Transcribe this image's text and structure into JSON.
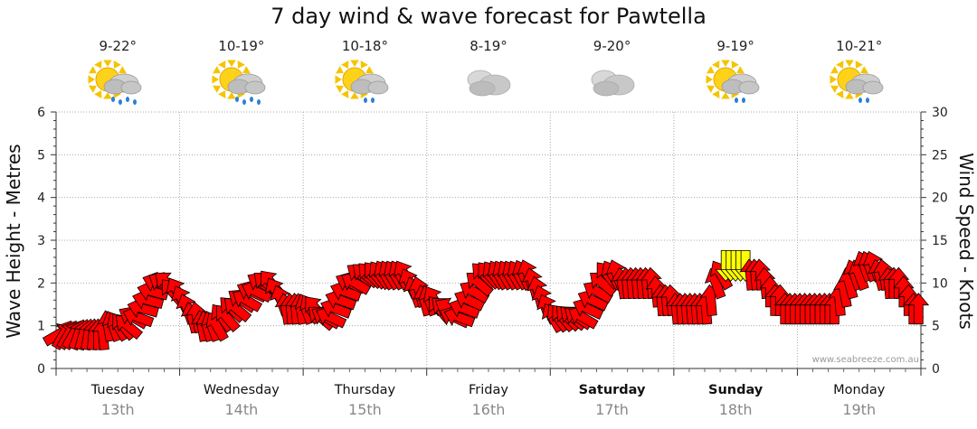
{
  "title": "7 day wind & wave forecast for Pawtella",
  "credit": "www.seabreeze.com.au",
  "days": [
    {
      "day": "Tuesday",
      "date": "13th",
      "temp": "9-22°",
      "icon": "sun-cloud-rain-icon",
      "bold": false
    },
    {
      "day": "Wednesday",
      "date": "14th",
      "temp": "10-19°",
      "icon": "sun-cloud-rain-icon",
      "bold": false
    },
    {
      "day": "Thursday",
      "date": "15th",
      "temp": "10-18°",
      "icon": "sun-cloud-showers-icon",
      "bold": false
    },
    {
      "day": "Friday",
      "date": "16th",
      "temp": "8-19°",
      "icon": "cloud-icon",
      "bold": false
    },
    {
      "day": "Saturday",
      "date": "17th",
      "temp": "9-20°",
      "icon": "cloud-icon",
      "bold": true
    },
    {
      "day": "Sunday",
      "date": "18th",
      "temp": "9-19°",
      "icon": "sun-cloud-showers-icon",
      "bold": true
    },
    {
      "day": "Monday",
      "date": "19th",
      "temp": "10-21°",
      "icon": "sun-cloud-showers-icon",
      "bold": false
    }
  ],
  "chart_data": {
    "type": "line",
    "title": "7 day wind & wave forecast for Pawtella",
    "ylabel_left": "Wave Height - Metres",
    "ylabel_right": "Wind Speed - Knots",
    "ylim_left": [
      0,
      6
    ],
    "yticks_left": [
      0,
      1,
      2,
      3,
      4,
      5,
      6
    ],
    "ylim_right": [
      0,
      30
    ],
    "yticks_right": [
      0,
      5,
      10,
      15,
      20,
      25,
      30
    ],
    "grid": true,
    "colors": {
      "arrow": "#ff0000",
      "arrow_light": "#ffff00",
      "grid": "#999999"
    },
    "wind_knots": [
      4,
      4,
      4,
      4,
      4,
      4,
      4,
      4,
      4,
      4,
      5,
      5,
      5,
      5,
      5,
      6,
      6,
      7,
      8,
      9,
      10,
      10,
      10,
      9,
      9,
      8,
      7,
      6,
      6,
      5,
      5,
      5,
      5,
      6,
      6,
      7,
      7,
      8,
      8,
      9,
      9,
      10,
      10,
      10,
      9,
      8,
      7,
      7,
      7,
      7,
      7,
      7,
      7,
      6,
      6,
      6,
      7,
      8,
      9,
      10,
      10,
      11,
      11,
      11,
      11,
      11,
      11,
      11,
      11,
      11,
      11,
      10,
      9,
      9,
      8,
      8,
      8,
      7,
      7,
      7,
      6,
      6,
      7,
      8,
      9,
      10,
      11,
      11,
      11,
      11,
      11,
      11,
      11,
      11,
      11,
      11,
      10,
      9,
      8,
      7,
      6,
      6,
      6,
      6,
      6,
      6,
      6,
      7,
      8,
      9,
      10,
      11,
      11,
      11,
      10,
      10,
      10,
      10,
      10,
      10,
      10,
      9,
      8,
      8,
      8,
      7,
      7,
      7,
      7,
      7,
      7,
      7,
      8,
      10,
      11,
      12,
      12,
      12,
      12,
      12,
      11,
      11,
      11,
      10,
      9,
      8,
      8,
      7,
      7,
      7,
      7,
      7,
      7,
      7,
      7,
      7,
      7,
      7,
      8,
      9,
      10,
      11,
      11,
      12,
      12,
      12,
      11,
      11,
      10,
      10,
      10,
      9,
      8,
      7,
      7
    ],
    "wind_highlight": [
      false,
      false,
      false,
      false,
      false,
      false,
      false,
      false,
      false,
      false,
      false,
      false,
      false,
      false,
      false,
      false,
      false,
      false,
      false,
      false,
      false,
      false,
      false,
      false,
      false,
      false,
      false,
      false,
      false,
      false,
      false,
      false,
      false,
      false,
      false,
      false,
      false,
      false,
      false,
      false,
      false,
      false,
      false,
      false,
      false,
      false,
      false,
      false,
      false,
      false,
      false,
      false,
      false,
      false,
      false,
      false,
      false,
      false,
      false,
      false,
      false,
      false,
      false,
      false,
      false,
      false,
      false,
      false,
      false,
      false,
      false,
      false,
      false,
      false,
      false,
      false,
      false,
      false,
      false,
      false,
      false,
      false,
      false,
      false,
      false,
      false,
      false,
      false,
      false,
      false,
      false,
      false,
      false,
      false,
      false,
      false,
      false,
      false,
      false,
      false,
      false,
      false,
      false,
      false,
      false,
      false,
      false,
      false,
      false,
      false,
      false,
      false,
      false,
      false,
      false,
      false,
      false,
      false,
      false,
      false,
      false,
      false,
      false,
      false,
      false,
      false,
      false,
      false,
      false,
      false,
      false,
      false,
      false,
      false,
      false,
      true,
      true,
      true,
      true,
      true,
      false,
      false,
      false,
      false,
      false,
      false,
      false,
      false,
      false,
      false,
      false,
      false,
      false,
      false,
      false,
      false,
      false,
      false,
      false,
      false,
      false,
      false,
      false,
      false,
      false,
      false,
      false,
      false,
      false,
      false,
      false,
      false,
      false,
      false,
      false
    ],
    "wind_dir_deg": [
      330,
      300,
      300,
      300,
      290,
      285,
      280,
      275,
      270,
      265,
      260,
      250,
      240,
      230,
      220,
      210,
      200,
      195,
      195,
      195,
      200,
      210,
      220,
      230,
      240,
      245,
      250,
      255,
      260,
      260,
      255,
      250,
      240,
      235,
      230,
      225,
      220,
      215,
      210,
      205,
      205,
      210,
      220,
      230,
      240,
      250,
      260,
      265,
      265,
      260,
      250,
      240,
      230,
      220,
      210,
      205,
      200,
      200,
      200,
      205,
      210,
      215,
      220,
      225,
      230,
      235,
      240,
      240,
      240,
      240,
      240,
      245,
      250,
      255,
      255,
      250,
      240,
      230,
      220,
      210,
      205,
      200,
      200,
      205,
      210,
      220,
      225,
      230,
      235,
      240,
      240,
      240,
      240,
      240,
      245,
      250,
      255,
      255,
      250,
      245,
      240,
      235,
      230,
      225,
      220,
      215,
      210,
      205,
      205,
      210,
      220,
      230,
      240,
      250,
      260,
      265,
      265,
      265,
      265,
      265,
      265,
      265,
      265,
      265,
      265,
      265,
      265,
      265,
      265,
      265,
      265,
      265,
      265,
      250,
      240,
      90,
      90,
      90,
      90,
      90,
      265,
      265,
      265,
      265,
      270,
      270,
      270,
      270,
      270,
      270,
      270,
      270,
      270,
      270,
      270,
      270,
      270,
      270,
      265,
      260,
      255,
      250,
      250,
      250,
      250,
      250,
      255,
      260,
      265,
      270,
      270,
      270,
      270,
      270,
      270
    ]
  }
}
